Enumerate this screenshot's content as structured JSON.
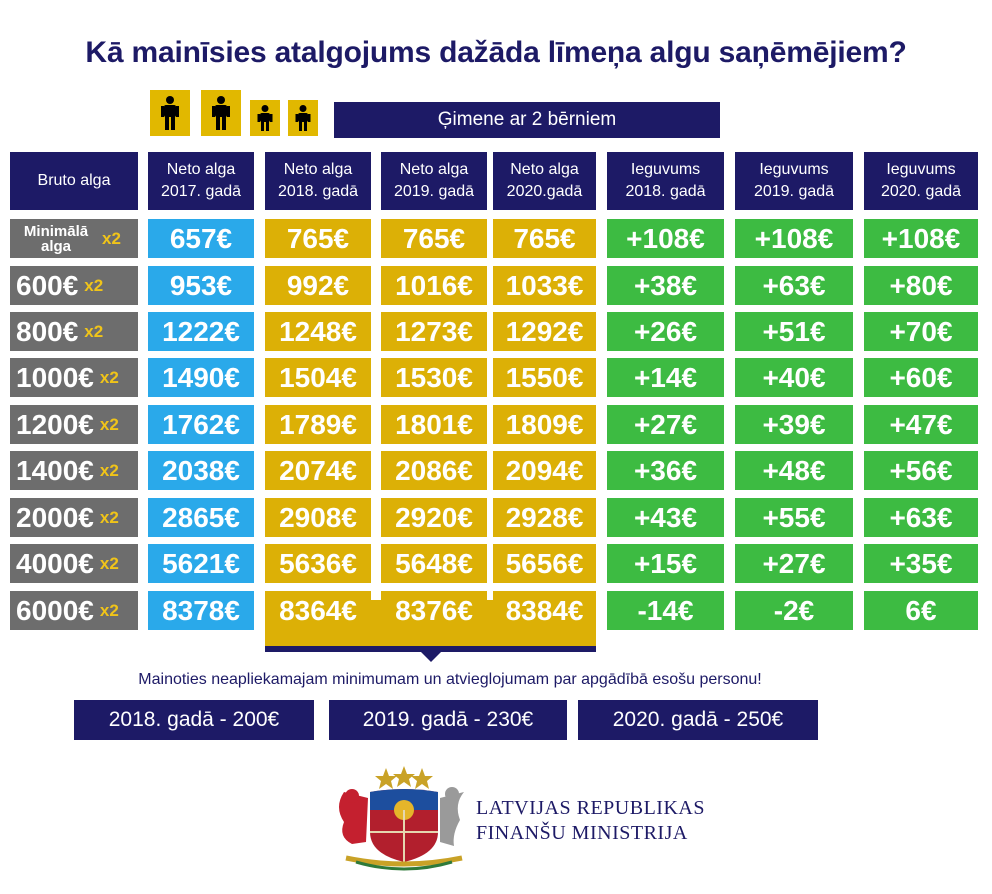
{
  "title": "Kā mainīsies atalgojums dažāda līmeņa algu saņēmējiem?",
  "family_label": "Ģimene ar 2 bērniem",
  "icons": [
    "adult-icon",
    "adult-icon",
    "child-icon",
    "child-icon"
  ],
  "headers": {
    "bruto": "Bruto alga",
    "neto_2017": [
      "Neto alga",
      "2017. gadā"
    ],
    "neto_2018": [
      "Neto alga",
      "2018. gadā"
    ],
    "neto_2019": [
      "Neto alga",
      "2019. gadā"
    ],
    "neto_2020": [
      "Neto alga",
      "2020.gadā"
    ],
    "ieg_2018": [
      "Ieguvums",
      "2018. gadā"
    ],
    "ieg_2019": [
      "Ieguvums",
      "2019. gadā"
    ],
    "ieg_2020": [
      "Ieguvums",
      "2020. gadā"
    ]
  },
  "multiplier": "x2",
  "rows": [
    {
      "bruto": "Minimālā alga",
      "neto2017": "657€",
      "neto2018": "765€",
      "neto2019": "765€",
      "neto2020": "765€",
      "ieg2018": "+108€",
      "ieg2019": "+108€",
      "ieg2020": "+108€"
    },
    {
      "bruto": "600€",
      "neto2017": "953€",
      "neto2018": "992€",
      "neto2019": "1016€",
      "neto2020": "1033€",
      "ieg2018": "+38€",
      "ieg2019": "+63€",
      "ieg2020": "+80€"
    },
    {
      "bruto": "800€",
      "neto2017": "1222€",
      "neto2018": "1248€",
      "neto2019": "1273€",
      "neto2020": "1292€",
      "ieg2018": "+26€",
      "ieg2019": "+51€",
      "ieg2020": "+70€"
    },
    {
      "bruto": "1000€",
      "neto2017": "1490€",
      "neto2018": "1504€",
      "neto2019": "1530€",
      "neto2020": "1550€",
      "ieg2018": "+14€",
      "ieg2019": "+40€",
      "ieg2020": "+60€"
    },
    {
      "bruto": "1200€",
      "neto2017": "1762€",
      "neto2018": "1789€",
      "neto2019": "1801€",
      "neto2020": "1809€",
      "ieg2018": "+27€",
      "ieg2019": "+39€",
      "ieg2020": "+47€"
    },
    {
      "bruto": "1400€",
      "neto2017": "2038€",
      "neto2018": "2074€",
      "neto2019": "2086€",
      "neto2020": "2094€",
      "ieg2018": "+36€",
      "ieg2019": "+48€",
      "ieg2020": "+56€"
    },
    {
      "bruto": "2000€",
      "neto2017": "2865€",
      "neto2018": "2908€",
      "neto2019": "2920€",
      "neto2020": "2928€",
      "ieg2018": "+43€",
      "ieg2019": "+55€",
      "ieg2020": "+63€"
    },
    {
      "bruto": "4000€",
      "neto2017": "5621€",
      "neto2018": "5636€",
      "neto2019": "5648€",
      "neto2020": "5656€",
      "ieg2018": "+15€",
      "ieg2019": "+27€",
      "ieg2020": "+35€"
    },
    {
      "bruto": "6000€",
      "neto2017": "8378€",
      "neto2018": "8364€",
      "neto2019": "8376€",
      "neto2020": "8384€",
      "ieg2018": "-14€",
      "ieg2019": "-2€",
      "ieg2020": "6€"
    }
  ],
  "note": "Mainoties neapliekamajam minimumam un atvieglojumam par apgādībā esošu personu!",
  "year_boxes": [
    "2018. gadā - 200€",
    "2019. gadā - 230€",
    "2020. gadā - 250€"
  ],
  "ministry": [
    "LATVIJAS REPUBLIKAS",
    "FINANŠU MINISTRIJA"
  ],
  "colors": {
    "navy": "#1d1a66",
    "blue": "#2aa9ea",
    "yellow": "#dcb006",
    "green": "#3dbb42",
    "gray": "#6d6d6d"
  }
}
